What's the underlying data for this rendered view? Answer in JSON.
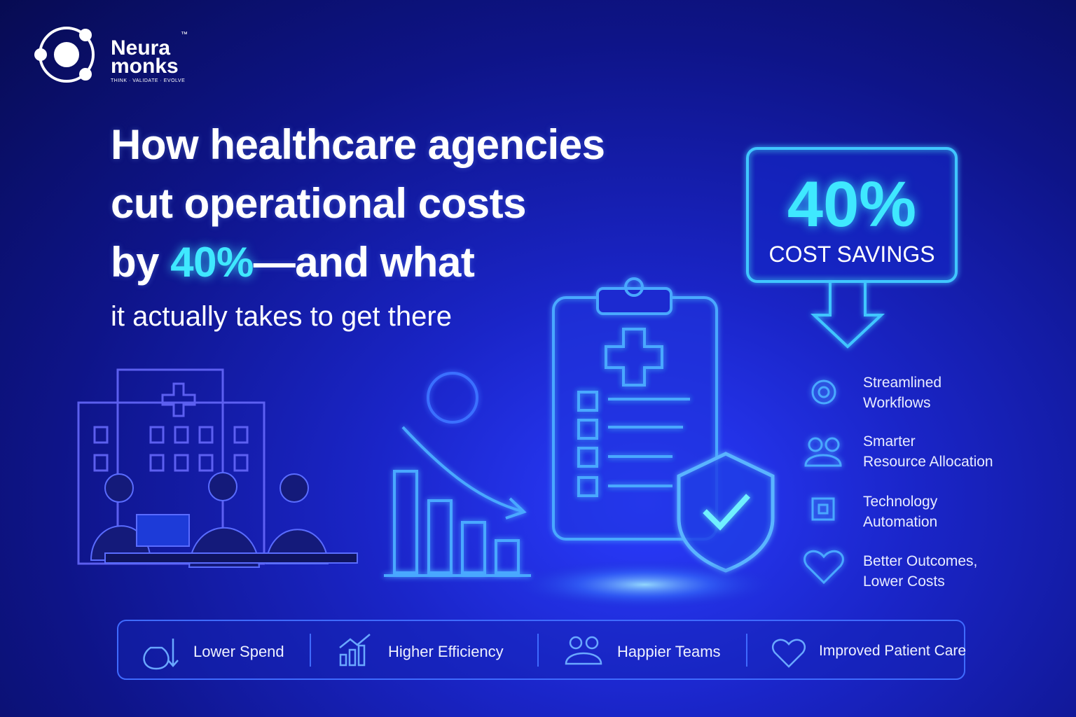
{
  "logo": {
    "line1": "Neura",
    "line2": "monks",
    "trademark": "™",
    "tagline": "THINK · VALIDATE · EVOLVE"
  },
  "headline": {
    "lines": [
      "How healthcare agencies",
      "cut operational costs"
    ],
    "lead": "by",
    "highlight": "40%",
    "rest": "—and what",
    "subline": "it actually takes to get there"
  },
  "callout": {
    "value": "40%",
    "label": "COST SAVINGS"
  },
  "features": [
    {
      "lines": [
        "Streamlined",
        "Workflows"
      ]
    },
    {
      "lines": [
        "Smarter",
        "Resource Allocation"
      ]
    },
    {
      "lines": [
        "Technology",
        "Automation"
      ]
    },
    {
      "lines": [
        "Better Outcomes,",
        "Lower Costs"
      ]
    }
  ],
  "benefits": [
    "Lower Spend",
    "Higher Efficiency",
    "Happier Teams",
    "Improved Patient Care"
  ]
}
